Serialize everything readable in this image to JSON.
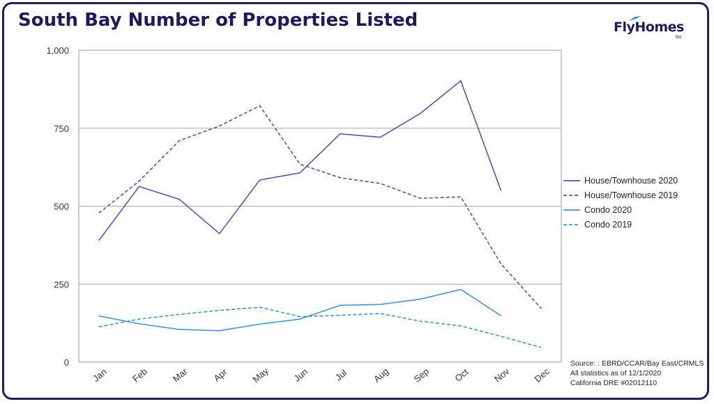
{
  "title": "South Bay Number of Properties Listed",
  "logo": {
    "text": "FlyHomes",
    "sub": "Inc"
  },
  "source_lines": [
    "Source: : EBRD/CCAR/Bay East/CRMLS",
    "All statistics as of 12/1/2020",
    "California DRE #02012110"
  ],
  "chart_data": {
    "type": "line",
    "title": "South Bay Number of Properties Listed",
    "xlabel": "",
    "ylabel": "",
    "categories": [
      "Jan",
      "Feb",
      "Mar",
      "Apr",
      "May",
      "Jun",
      "Jul",
      "Aug",
      "Sep",
      "Oct",
      "Nov",
      "Dec"
    ],
    "ylim": [
      0,
      1000
    ],
    "yticks": [
      0,
      250,
      500,
      750,
      1000
    ],
    "ytick_labels": [
      "0",
      "250",
      "500",
      "750",
      "1,000"
    ],
    "grid": "horizontal",
    "legend_position": "right",
    "series": [
      {
        "name": "House/Townhouse 2020",
        "color": "#5b4fb3",
        "dash": false,
        "values": [
          390,
          563,
          522,
          412,
          584,
          607,
          732,
          721,
          798,
          902,
          550,
          null
        ]
      },
      {
        "name": "House/Townhouse 2019",
        "color": "#5b4fb3",
        "dash": true,
        "values": [
          478,
          580,
          710,
          757,
          822,
          635,
          591,
          573,
          525,
          530,
          315,
          172
        ]
      },
      {
        "name": "Condo 2020",
        "color": "#3f93e0",
        "dash": false,
        "values": [
          148,
          123,
          105,
          101,
          122,
          138,
          182,
          185,
          202,
          233,
          149,
          null
        ]
      },
      {
        "name": "Condo 2019",
        "color": "#3f93e0",
        "dash": true,
        "values": [
          113,
          138,
          153,
          166,
          176,
          146,
          150,
          156,
          131,
          116,
          83,
          47
        ]
      }
    ]
  }
}
